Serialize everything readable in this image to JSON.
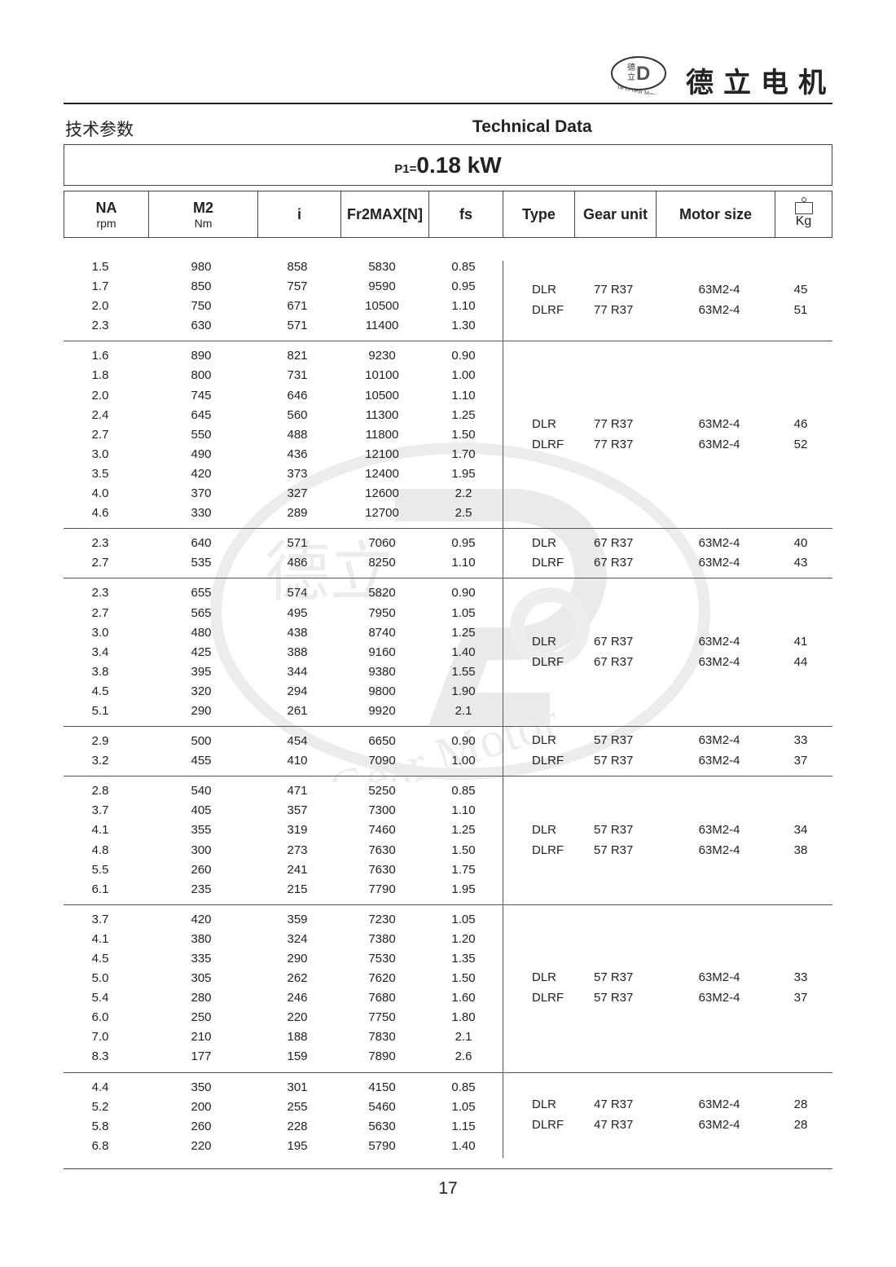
{
  "header": {
    "brand": "德立电机",
    "logo_text": "De Li Gear Motor",
    "logo_chars": "德立"
  },
  "titles": {
    "cn": "技术参数",
    "en": "Technical Data"
  },
  "power": {
    "label": "P1=",
    "value": "0.18 kW"
  },
  "columns": {
    "na": "NA",
    "na_unit": "rpm",
    "m2": "M2",
    "m2_unit": "Nm",
    "i": "i",
    "fr": "Fr2MAX[N]",
    "fs": "fs",
    "type": "Type",
    "gear_unit": "Gear unit",
    "motor_size": "Motor size",
    "kg": "Kg",
    "kg_icon": "weight-icon"
  },
  "groups": [
    {
      "rows": [
        [
          "1.5",
          "980",
          "858",
          "5830",
          "0.85"
        ],
        [
          "1.7",
          "850",
          "757",
          "9590",
          "0.95"
        ],
        [
          "2.0",
          "750",
          "671",
          "10500",
          "1.10"
        ],
        [
          "2.3",
          "630",
          "571",
          "11400",
          "1.30"
        ]
      ],
      "units": [
        [
          "DLR",
          "77 R37",
          "63M2-4",
          "45"
        ],
        [
          "DLRF",
          "77 R37",
          "63M2-4",
          "51"
        ]
      ]
    },
    {
      "rows": [
        [
          "1.6",
          "890",
          "821",
          "9230",
          "0.90"
        ],
        [
          "1.8",
          "800",
          "731",
          "10100",
          "1.00"
        ],
        [
          "2.0",
          "745",
          "646",
          "10500",
          "1.10"
        ],
        [
          "2.4",
          "645",
          "560",
          "11300",
          "1.25"
        ],
        [
          "2.7",
          "550",
          "488",
          "11800",
          "1.50"
        ],
        [
          "3.0",
          "490",
          "436",
          "12100",
          "1.70"
        ],
        [
          "3.5",
          "420",
          "373",
          "12400",
          "1.95"
        ],
        [
          "4.0",
          "370",
          "327",
          "12600",
          "2.2"
        ],
        [
          "4.6",
          "330",
          "289",
          "12700",
          "2.5"
        ]
      ],
      "units": [
        [
          "DLR",
          "77 R37",
          "63M2-4",
          "46"
        ],
        [
          "DLRF",
          "77 R37",
          "63M2-4",
          "52"
        ]
      ]
    },
    {
      "rows": [
        [
          "2.3",
          "640",
          "571",
          "7060",
          "0.95"
        ],
        [
          "2.7",
          "535",
          "486",
          "8250",
          "1.10"
        ]
      ],
      "units": [
        [
          "DLR",
          "67 R37",
          "63M2-4",
          "40"
        ],
        [
          "DLRF",
          "67 R37",
          "63M2-4",
          "43"
        ]
      ]
    },
    {
      "rows": [
        [
          "2.3",
          "655",
          "574",
          "5820",
          "0.90"
        ],
        [
          "2.7",
          "565",
          "495",
          "7950",
          "1.05"
        ],
        [
          "3.0",
          "480",
          "438",
          "8740",
          "1.25"
        ],
        [
          "3.4",
          "425",
          "388",
          "9160",
          "1.40"
        ],
        [
          "3.8",
          "395",
          "344",
          "9380",
          "1.55"
        ],
        [
          "4.5",
          "320",
          "294",
          "9800",
          "1.90"
        ],
        [
          "5.1",
          "290",
          "261",
          "9920",
          "2.1"
        ]
      ],
      "units": [
        [
          "DLR",
          "67 R37",
          "63M2-4",
          "41"
        ],
        [
          "DLRF",
          "67 R37",
          "63M2-4",
          "44"
        ]
      ]
    },
    {
      "rows": [
        [
          "2.9",
          "500",
          "454",
          "6650",
          "0.90"
        ],
        [
          "3.2",
          "455",
          "410",
          "7090",
          "1.00"
        ]
      ],
      "units": [
        [
          "DLR",
          "57 R37",
          "63M2-4",
          "33"
        ],
        [
          "DLRF",
          "57 R37",
          "63M2-4",
          "37"
        ]
      ]
    },
    {
      "rows": [
        [
          "2.8",
          "540",
          "471",
          "5250",
          "0.85"
        ],
        [
          "3.7",
          "405",
          "357",
          "7300",
          "1.10"
        ],
        [
          "4.1",
          "355",
          "319",
          "7460",
          "1.25"
        ],
        [
          "4.8",
          "300",
          "273",
          "7630",
          "1.50"
        ],
        [
          "5.5",
          "260",
          "241",
          "7630",
          "1.75"
        ],
        [
          "6.1",
          "235",
          "215",
          "7790",
          "1.95"
        ]
      ],
      "units": [
        [
          "DLR",
          "57 R37",
          "63M2-4",
          "34"
        ],
        [
          "DLRF",
          "57 R37",
          "63M2-4",
          "38"
        ]
      ]
    },
    {
      "rows": [
        [
          "3.7",
          "420",
          "359",
          "7230",
          "1.05"
        ],
        [
          "4.1",
          "380",
          "324",
          "7380",
          "1.20"
        ],
        [
          "4.5",
          "335",
          "290",
          "7530",
          "1.35"
        ],
        [
          "5.0",
          "305",
          "262",
          "7620",
          "1.50"
        ],
        [
          "5.4",
          "280",
          "246",
          "7680",
          "1.60"
        ],
        [
          "6.0",
          "250",
          "220",
          "7750",
          "1.80"
        ],
        [
          "7.0",
          "210",
          "188",
          "7830",
          "2.1"
        ],
        [
          "8.3",
          "177",
          "159",
          "7890",
          "2.6"
        ]
      ],
      "units": [
        [
          "DLR",
          "57 R37",
          "63M2-4",
          "33"
        ],
        [
          "DLRF",
          "57 R37",
          "63M2-4",
          "37"
        ]
      ]
    },
    {
      "rows": [
        [
          "4.4",
          "350",
          "301",
          "4150",
          "0.85"
        ],
        [
          "5.2",
          "200",
          "255",
          "5460",
          "1.05"
        ],
        [
          "5.8",
          "260",
          "228",
          "5630",
          "1.15"
        ],
        [
          "6.8",
          "220",
          "195",
          "5790",
          "1.40"
        ]
      ],
      "units": [
        [
          "DLR",
          "47 R37",
          "63M2-4",
          "28"
        ],
        [
          "DLRF",
          "47 R37",
          "63M2-4",
          "28"
        ]
      ]
    }
  ],
  "footer": {
    "page_number": "17"
  }
}
